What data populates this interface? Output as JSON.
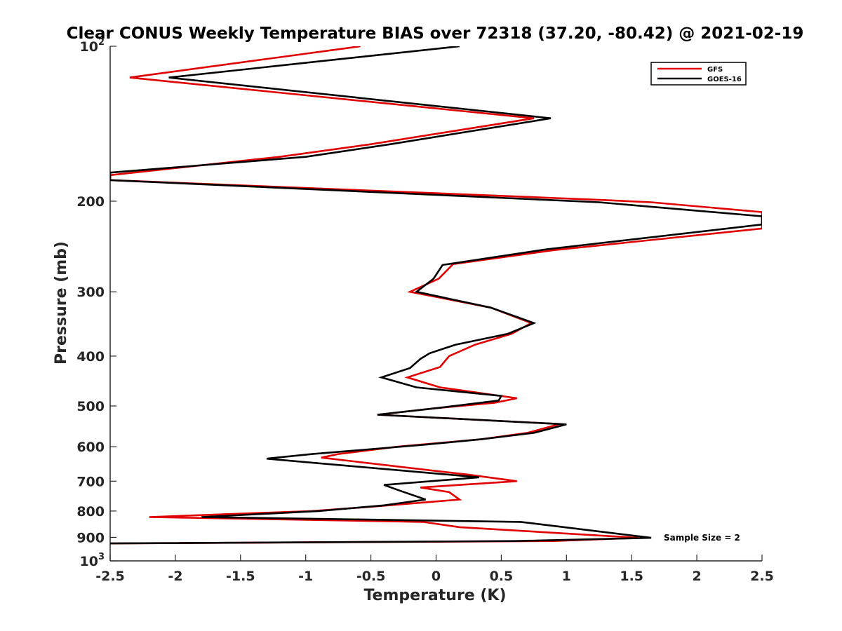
{
  "chart_data": {
    "type": "line",
    "orientation": "vertical-profile",
    "title": "Clear CONUS Weekly Temperature BIAS over 72318 (37.20, -80.42) @ 2021-02-19",
    "xlabel": "Temperature (K)",
    "ylabel": "Pressure (mb)",
    "xlim": [
      -2.5,
      2.5
    ],
    "ylim": [
      100,
      1000
    ],
    "y_scale": "log",
    "y_reversed": true,
    "grid": false,
    "legend_position": "top-right",
    "x_ticks": [
      "-2.5",
      "-2",
      "-1.5",
      "-1",
      "-0.5",
      "0",
      "0.5",
      "1",
      "1.5",
      "2",
      "2.5"
    ],
    "x_tick_values": [
      -2.5,
      -2,
      -1.5,
      -1,
      -0.5,
      0,
      0.5,
      1,
      1.5,
      2,
      2.5
    ],
    "y_ticks": [
      {
        "value": 100,
        "base": "10",
        "exp": "2"
      },
      {
        "value": 200,
        "label": "200"
      },
      {
        "value": 300,
        "label": "300"
      },
      {
        "value": 400,
        "label": "400"
      },
      {
        "value": 500,
        "label": "500"
      },
      {
        "value": 600,
        "label": "600"
      },
      {
        "value": 700,
        "label": "700"
      },
      {
        "value": 800,
        "label": "800"
      },
      {
        "value": 900,
        "label": "900"
      },
      {
        "value": 1000,
        "base": "10",
        "exp": "3"
      }
    ],
    "series": [
      {
        "name": "GFS",
        "color": "#e00000",
        "points": [
          [
            -0.58,
            100
          ],
          [
            -2.35,
            115
          ],
          [
            0.75,
            138
          ],
          [
            -0.5,
            155
          ],
          [
            -1.2,
            164
          ],
          [
            -2.5,
            178
          ],
          [
            -2.5,
            182
          ],
          [
            1.3,
            199
          ],
          [
            1.65,
            201
          ],
          [
            2.5,
            210
          ],
          [
            2.5,
            226
          ],
          [
            0.9,
            249
          ],
          [
            0.13,
            265
          ],
          [
            0.02,
            283
          ],
          [
            -0.2,
            300
          ],
          [
            0.42,
            322
          ],
          [
            0.73,
            345
          ],
          [
            0.58,
            362
          ],
          [
            0.3,
            380
          ],
          [
            0.1,
            400
          ],
          [
            0.03,
            420
          ],
          [
            -0.22,
            440
          ],
          [
            0.03,
            460
          ],
          [
            0.62,
            483
          ],
          [
            0.45,
            493
          ],
          [
            0,
            505
          ],
          [
            -0.45,
            520
          ],
          [
            0.95,
            542
          ],
          [
            0.7,
            564
          ],
          [
            0.35,
            580
          ],
          [
            -0.3,
            600
          ],
          [
            -0.75,
            620
          ],
          [
            -0.88,
            630
          ],
          [
            0.25,
            680
          ],
          [
            0.62,
            700
          ],
          [
            -0.12,
            720
          ],
          [
            0.1,
            735
          ],
          [
            0.18,
            760
          ],
          [
            -0.5,
            785
          ],
          [
            -0.95,
            800
          ],
          [
            -2.2,
            822
          ],
          [
            -0.1,
            840
          ],
          [
            0.18,
            860
          ],
          [
            1.55,
            902
          ],
          [
            0.9,
            915
          ],
          [
            -2.5,
            925
          ]
        ]
      },
      {
        "name": "GOES-16",
        "color": "#000000",
        "points": [
          [
            0.18,
            100
          ],
          [
            -2.05,
            115
          ],
          [
            0.88,
            138
          ],
          [
            -0.35,
            155
          ],
          [
            -1.0,
            164
          ],
          [
            -2.5,
            176
          ],
          [
            -2.5,
            182
          ],
          [
            1.25,
            201
          ],
          [
            2.5,
            214
          ],
          [
            2.5,
            222
          ],
          [
            0.85,
            248
          ],
          [
            0.05,
            266
          ],
          [
            -0.02,
            283
          ],
          [
            -0.15,
            300
          ],
          [
            0.42,
            322
          ],
          [
            0.75,
            345
          ],
          [
            0.55,
            362
          ],
          [
            0.15,
            380
          ],
          [
            -0.05,
            395
          ],
          [
            -0.12,
            405
          ],
          [
            -0.2,
            422
          ],
          [
            -0.42,
            440
          ],
          [
            -0.15,
            460
          ],
          [
            0.5,
            478
          ],
          [
            0.48,
            488
          ],
          [
            0,
            505
          ],
          [
            -0.45,
            520
          ],
          [
            1.0,
            543
          ],
          [
            0.75,
            564
          ],
          [
            0.35,
            580
          ],
          [
            -0.1,
            595
          ],
          [
            -0.95,
            620
          ],
          [
            -1.3,
            633
          ],
          [
            0.33,
            688
          ],
          [
            -0.4,
            712
          ],
          [
            -0.28,
            730
          ],
          [
            -0.08,
            760
          ],
          [
            -0.4,
            780
          ],
          [
            -0.9,
            800
          ],
          [
            -1.8,
            822
          ],
          [
            0.65,
            840
          ],
          [
            0.9,
            855
          ],
          [
            1.65,
            902
          ],
          [
            0.6,
            915
          ],
          [
            -2.5,
            925
          ]
        ]
      }
    ],
    "annotation": "Sample Size = 2"
  }
}
